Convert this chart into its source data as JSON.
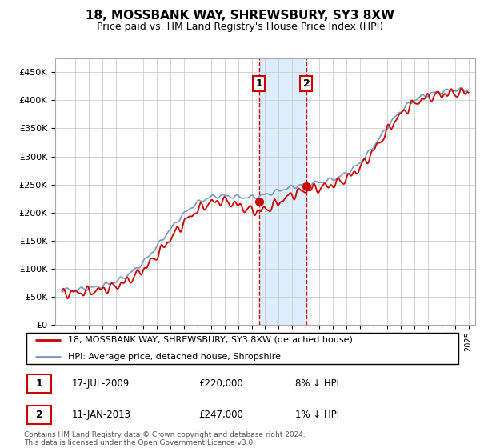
{
  "title": "18, MOSSBANK WAY, SHREWSBURY, SY3 8XW",
  "subtitle": "Price paid vs. HM Land Registry's House Price Index (HPI)",
  "legend_line1": "18, MOSSBANK WAY, SHREWSBURY, SY3 8XW (detached house)",
  "legend_line2": "HPI: Average price, detached house, Shropshire",
  "footer": "Contains HM Land Registry data © Crown copyright and database right 2024.\nThis data is licensed under the Open Government Licence v3.0.",
  "transaction1_date": "17-JUL-2009",
  "transaction1_price": "£220,000",
  "transaction1_hpi": "8% ↓ HPI",
  "transaction1_label": "1",
  "transaction2_date": "11-JAN-2013",
  "transaction2_price": "£247,000",
  "transaction2_hpi": "1% ↓ HPI",
  "transaction2_label": "2",
  "hpi_color": "#7799bb",
  "price_color": "#cc0000",
  "highlight_color": "#ddeeff",
  "transaction1_x": 2009.54,
  "transaction2_x": 2013.04,
  "ylim": [
    0,
    475000
  ],
  "yticks": [
    0,
    50000,
    100000,
    150000,
    200000,
    250000,
    300000,
    350000,
    400000,
    450000
  ],
  "xmin": 1994.5,
  "xmax": 2025.5
}
